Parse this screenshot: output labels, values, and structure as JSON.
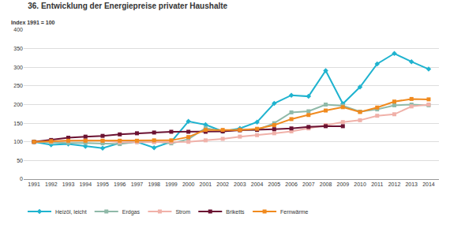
{
  "chart_data": {
    "type": "line",
    "title": "36. Entwicklung der Energiepreise privater Haushalte",
    "subtitle": "Index 1991 = 100",
    "categories": [
      "1991",
      "1992",
      "1993",
      "1994",
      "1995",
      "1996",
      "1997",
      "1998",
      "1999",
      "2000",
      "2001",
      "2002",
      "2003",
      "2004",
      "2005",
      "2006",
      "2007",
      "2008",
      "2009",
      "2010",
      "2011",
      "2012",
      "2013",
      "2014"
    ],
    "series": [
      {
        "name": "Heizöl, leicht",
        "color": "#1fb3cf",
        "marker": "diamond",
        "values": [
          100,
          92,
          94,
          88,
          83,
          97,
          100,
          84,
          100,
          155,
          146,
          128,
          136,
          153,
          203,
          225,
          222,
          291,
          202,
          247,
          309,
          337,
          315,
          295
        ]
      },
      {
        "name": "Erdgas",
        "color": "#8fb9a8",
        "marker": "square",
        "values": [
          100,
          98,
          97,
          97,
          96,
          94,
          100,
          101,
          96,
          107,
          137,
          128,
          133,
          132,
          150,
          179,
          182,
          200,
          197,
          181,
          187,
          198,
          200,
          198
        ]
      },
      {
        "name": "Strom",
        "color": "#f0b1a9",
        "marker": "square",
        "values": [
          100,
          101,
          103,
          104,
          103,
          99,
          99,
          99,
          99,
          100,
          104,
          108,
          114,
          118,
          123,
          128,
          136,
          145,
          153,
          158,
          170,
          174,
          195,
          200
        ]
      },
      {
        "name": "Briketts",
        "color": "#6b1232",
        "marker": "square",
        "values": [
          100,
          105,
          111,
          114,
          116,
          120,
          123,
          125,
          127,
          127,
          127,
          128,
          131,
          132,
          134,
          136,
          140,
          142,
          142,
          null,
          null,
          null,
          null,
          null
        ]
      },
      {
        "name": "Fernwärme",
        "color": "#f08a1e",
        "marker": "square",
        "values": [
          100,
          102,
          103,
          103,
          103,
          103,
          103,
          104,
          104,
          113,
          132,
          132,
          132,
          135,
          145,
          161,
          172,
          184,
          193,
          180,
          192,
          208,
          215,
          214
        ]
      }
    ],
    "ylim": [
      0,
      400
    ],
    "yticks": [
      0,
      50,
      100,
      150,
      200,
      250,
      300,
      350,
      400
    ],
    "grid": true,
    "legend": "bottom"
  }
}
